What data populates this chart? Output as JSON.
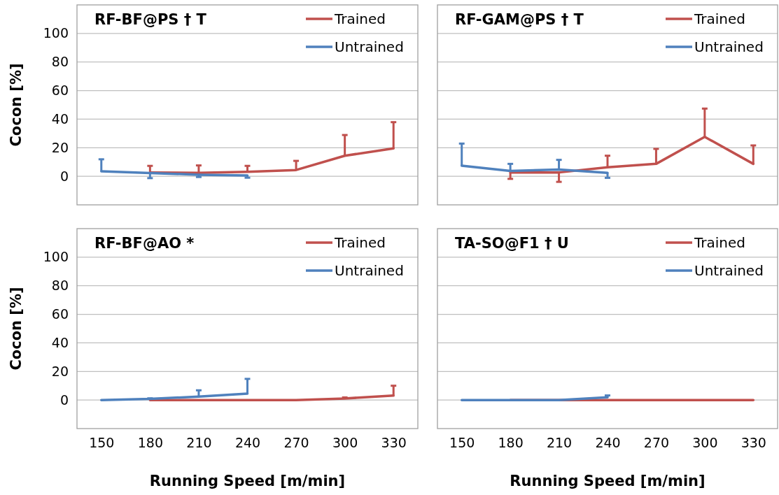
{
  "chart_data": [
    {
      "type": "line",
      "title": "RF-BF@PS  † T",
      "ylabel": "Cocon [%]",
      "categories": [
        "150",
        "180",
        "210",
        "240",
        "270",
        "300",
        "330"
      ],
      "ylim": [
        -20,
        120
      ],
      "yticks": [
        0,
        20,
        40,
        60,
        80,
        100
      ],
      "grid": "y",
      "legend": "top right",
      "tick_labels": "y",
      "series": [
        {
          "name": "Trained",
          "color": "#c0504d",
          "values": [
            null,
            2.6,
            2.4,
            3.1,
            4.4,
            14.4,
            19.5
          ],
          "errors": [
            null,
            [
              2.6,
              7.3
            ],
            [
              2.4,
              7.6
            ],
            [
              3.1,
              7.3
            ],
            [
              4.4,
              10.8
            ],
            [
              14.4,
              28.9
            ],
            [
              19.5,
              37.9
            ]
          ]
        },
        {
          "name": "Untrained",
          "color": "#4f81bd",
          "values": [
            3.5,
            2.3,
            1.1,
            0.6,
            null,
            null,
            null
          ],
          "errors": [
            [
              3.5,
              11.9
            ],
            [
              -1.3,
              2.3
            ],
            [
              -0.5,
              1.1
            ],
            [
              -1,
              0.6
            ],
            null,
            null,
            null
          ]
        }
      ]
    },
    {
      "type": "line",
      "title": "RF-GAM@PS  † T",
      "categories": [
        "150",
        "180",
        "210",
        "240",
        "270",
        "300",
        "330"
      ],
      "ylim": [
        -20,
        120
      ],
      "yticks": [
        0,
        20,
        40,
        60,
        80,
        100
      ],
      "grid": "y",
      "legend": "top right",
      "tick_labels": false,
      "series": [
        {
          "name": "Trained",
          "color": "#c0504d",
          "values": [
            null,
            2.7,
            2.7,
            6.3,
            8.7,
            27.6,
            8.7
          ],
          "errors": [
            null,
            [
              -1.8,
              2.7
            ],
            [
              -3.9,
              2.7
            ],
            [
              6.3,
              14.4
            ],
            [
              8.7,
              19.2
            ],
            [
              27.6,
              47.4
            ],
            [
              8.7,
              21.6
            ]
          ]
        },
        {
          "name": "Untrained",
          "color": "#4f81bd",
          "values": [
            7.4,
            3.7,
            4.7,
            2.4,
            null,
            null,
            null
          ],
          "errors": [
            [
              7.4,
              22.9
            ],
            [
              3.7,
              8.7
            ],
            [
              4.7,
              11.5
            ],
            [
              -1.1,
              2.4
            ],
            null,
            null,
            null
          ]
        }
      ]
    },
    {
      "type": "line",
      "title": "RF-BF@AO  *",
      "xlabel": "Running Speed [m/min]",
      "ylabel": "Cocon [%]",
      "categories": [
        "150",
        "180",
        "210",
        "240",
        "270",
        "300",
        "330"
      ],
      "ylim": [
        -20,
        120
      ],
      "yticks": [
        0,
        20,
        40,
        60,
        80,
        100
      ],
      "grid": "y",
      "legend": "top right",
      "series": [
        {
          "name": "Trained",
          "color": "#c0504d",
          "values": [
            null,
            0,
            0,
            0,
            0,
            1.1,
            3.1
          ],
          "errors": [
            null,
            null,
            null,
            null,
            null,
            [
              1.1,
              1.8
            ],
            [
              3.1,
              10
            ]
          ]
        },
        {
          "name": "Untrained",
          "color": "#4f81bd",
          "values": [
            0,
            0.8,
            2.4,
            4.5,
            null,
            null,
            null
          ],
          "errors": [
            null,
            [
              0.8,
              1.2
            ],
            [
              2.4,
              6.8
            ],
            [
              4.5,
              14.8
            ],
            null,
            null,
            null
          ]
        }
      ]
    },
    {
      "type": "line",
      "title": "TA-SO@F1  † U",
      "xlabel": "Running Speed [m/min]",
      "categories": [
        "150",
        "180",
        "210",
        "240",
        "270",
        "300",
        "330"
      ],
      "ylim": [
        -20,
        120
      ],
      "yticks": [
        0,
        20,
        40,
        60,
        80,
        100
      ],
      "grid": "y",
      "legend": "top right",
      "tick_labels": "x",
      "series": [
        {
          "name": "Trained",
          "color": "#c0504d",
          "values": [
            null,
            0,
            0,
            0,
            0,
            0,
            0
          ]
        },
        {
          "name": "Untrained",
          "color": "#4f81bd",
          "values": [
            0,
            0,
            0,
            1.9,
            null,
            null,
            null
          ],
          "errors": [
            null,
            null,
            null,
            [
              1.9,
              3.2
            ],
            null,
            null,
            null
          ]
        }
      ]
    }
  ]
}
